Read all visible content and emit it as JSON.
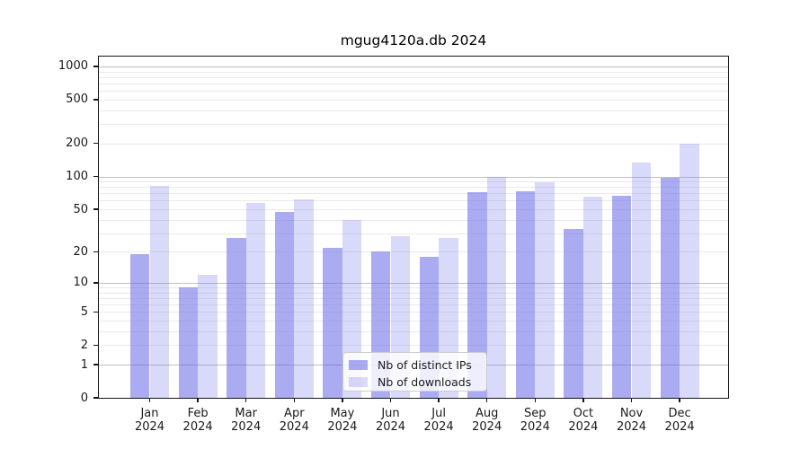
{
  "title": "mgug4120a.db 2024",
  "chart_data": {
    "type": "bar",
    "title": "mgug4120a.db 2024",
    "categories": [
      "Jan 2024",
      "Feb 2024",
      "Mar 2024",
      "Apr 2024",
      "May 2024",
      "Jun 2024",
      "Jul 2024",
      "Aug 2024",
      "Sep 2024",
      "Oct 2024",
      "Nov 2024",
      "Dec 2024"
    ],
    "series": [
      {
        "name": "Nb of distinct IPs",
        "values": [
          19,
          9,
          27,
          47,
          22,
          20,
          18,
          72,
          73,
          33,
          66,
          97
        ]
      },
      {
        "name": "Nb of downloads",
        "values": [
          82,
          12,
          57,
          62,
          40,
          28,
          27,
          100,
          88,
          65,
          133,
          200
        ]
      }
    ],
    "yscale": "log10(value+1)",
    "yticks": [
      0,
      1,
      2,
      5,
      10,
      20,
      50,
      100,
      200,
      500,
      1000
    ],
    "ylim": [
      0,
      1230
    ],
    "xlabel": "",
    "ylabel": "",
    "grid": "horizontal major (1,10,100,1000) + minor mantissa lines",
    "legend_position": "lower center"
  },
  "legend": {
    "entries": [
      {
        "label": "Nb of distinct IPs"
      },
      {
        "label": "Nb of downloads"
      }
    ]
  },
  "colors": {
    "bar_distinct_ips": "#6666e68c",
    "bar_downloads": "#6666e640",
    "grid_major": "#bfbfbf",
    "grid_minor": "#eaeaea",
    "spine": "#151515",
    "text": "#1a1a1a",
    "background": "#ffffff"
  }
}
